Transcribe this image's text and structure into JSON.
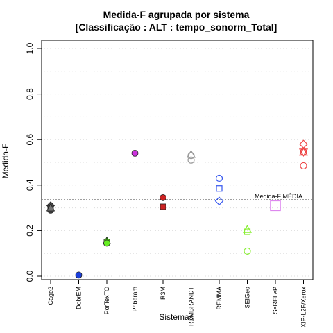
{
  "chart_data": {
    "type": "scatter",
    "title": "Medida-F agrupada por sistema",
    "subtitle": "[Classificação : ALT : tempo_sonorm_Total]",
    "xlabel": "Sistemas",
    "ylabel": "Medida-F",
    "ylim": [
      0,
      1
    ],
    "yticks": [
      "0.0",
      "0.2",
      "0.4",
      "0.6",
      "0.8",
      "1.0"
    ],
    "grid": "horizontal dotted",
    "categories": [
      "Cage2",
      "DobrEM",
      "PorTexTO",
      "Priberam",
      "R3M",
      "REMBRANDT",
      "REMMA",
      "SEIGeo",
      "SeRELeP",
      "XIP-L2F/Xerox"
    ],
    "reference_line": {
      "value": 0.335,
      "label": "Medida-F MÉDIA"
    },
    "points": [
      {
        "category": "Cage2",
        "value": 0.31,
        "shape": "diamond",
        "color": "#444444",
        "filled": true
      },
      {
        "category": "Cage2",
        "value": 0.3,
        "shape": "square",
        "color": "#444444",
        "filled": true
      },
      {
        "category": "Cage2",
        "value": 0.29,
        "shape": "circle",
        "color": "#444444",
        "filled": true
      },
      {
        "category": "Cage2",
        "value": 0.3,
        "shape": "triangle",
        "color": "#777777",
        "filled": true
      },
      {
        "category": "DobrEM",
        "value": 0.005,
        "shape": "circle",
        "color": "#1c3fdc",
        "filled": true
      },
      {
        "category": "PorTexTO",
        "value": 0.155,
        "shape": "triangle",
        "color": "#22aa00",
        "filled": true
      },
      {
        "category": "PorTexTO",
        "value": 0.15,
        "shape": "square",
        "color": "#66ee22",
        "filled": true
      },
      {
        "category": "PorTexTO",
        "value": 0.145,
        "shape": "circle",
        "color": "#66ee22",
        "filled": true
      },
      {
        "category": "Priberam",
        "value": 0.54,
        "shape": "circle",
        "color": "#cc33dd",
        "filled": true
      },
      {
        "category": "R3M",
        "value": 0.345,
        "shape": "circle",
        "color": "#cc2222",
        "filled": true
      },
      {
        "category": "R3M",
        "value": 0.305,
        "shape": "square",
        "color": "#cc2222",
        "filled": true
      },
      {
        "category": "REMBRANDT",
        "value": 0.535,
        "shape": "triangle",
        "color": "#9a9a9a",
        "filled": false
      },
      {
        "category": "REMBRANDT",
        "value": 0.53,
        "shape": "circle",
        "color": "#9a9a9a",
        "filled": false
      },
      {
        "category": "REMBRANDT",
        "value": 0.51,
        "shape": "circle",
        "color": "#9a9a9a",
        "filled": false
      },
      {
        "category": "REMMA",
        "value": 0.43,
        "shape": "circle",
        "color": "#3355ee",
        "filled": false
      },
      {
        "category": "REMMA",
        "value": 0.385,
        "shape": "square",
        "color": "#3355ee",
        "filled": false
      },
      {
        "category": "REMMA",
        "value": 0.33,
        "shape": "diamond",
        "color": "#3355ee",
        "filled": false
      },
      {
        "category": "SEIGeo",
        "value": 0.205,
        "shape": "triangle",
        "color": "#88ee33",
        "filled": false
      },
      {
        "category": "SEIGeo",
        "value": 0.195,
        "shape": "square",
        "color": "#88ee33",
        "filled": false
      },
      {
        "category": "SEIGeo",
        "value": 0.11,
        "shape": "circle",
        "color": "#88ee33",
        "filled": false
      },
      {
        "category": "SeRELeP",
        "value": 0.31,
        "shape": "square-large",
        "color": "#dd88ee",
        "filled": false
      },
      {
        "category": "XIP-L2F/Xerox",
        "value": 0.58,
        "shape": "diamond",
        "color": "#ee4444",
        "filled": false
      },
      {
        "category": "XIP-L2F/Xerox",
        "value": 0.545,
        "shape": "triangle",
        "color": "#ee4444",
        "filled": false
      },
      {
        "category": "XIP-L2F/Xerox",
        "value": 0.545,
        "shape": "triangle-down",
        "color": "#ee4444",
        "filled": false
      },
      {
        "category": "XIP-L2F/Xerox",
        "value": 0.545,
        "shape": "circle",
        "color": "#ee4444",
        "filled": false
      },
      {
        "category": "XIP-L2F/Xerox",
        "value": 0.485,
        "shape": "circle",
        "color": "#ee4444",
        "filled": false
      }
    ]
  }
}
